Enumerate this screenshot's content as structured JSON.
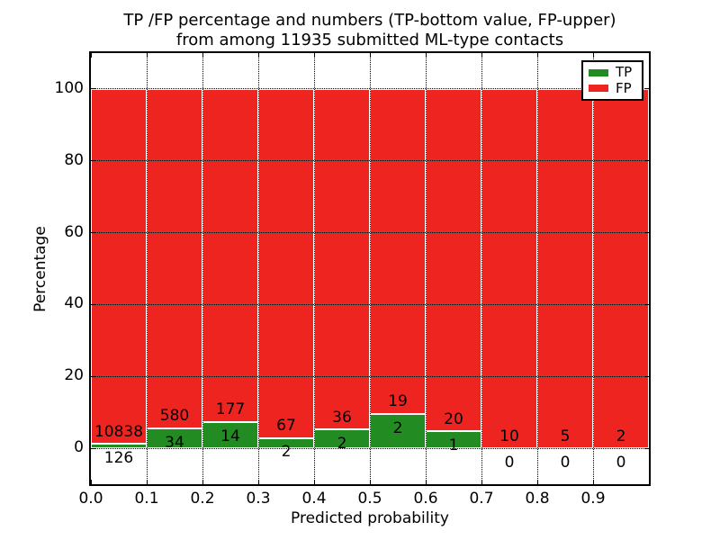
{
  "title": {
    "line1": "TP /FP percentage and numbers (TP-bottom value, FP-upper)",
    "line2": "from among 11935 submitted ML-type contacts"
  },
  "chart_data": {
    "type": "bar",
    "subtype": "stacked_percentage_histogram",
    "title": "TP /FP percentage and numbers (TP-bottom value, FP-upper) from among 11935 submitted ML-type contacts",
    "total_submitted_contacts": 11935,
    "xlabel": "Predicted probability",
    "ylabel": "Percentage",
    "xlim": [
      0.0,
      1.0
    ],
    "ylim": [
      -10,
      110
    ],
    "x_ticks": [
      0.0,
      0.1,
      0.2,
      0.3,
      0.4,
      0.5,
      0.6,
      0.7,
      0.8,
      0.9
    ],
    "x_tick_labels": [
      "0.0",
      "0.1",
      "0.2",
      "0.3",
      "0.4",
      "0.5",
      "0.6",
      "0.7",
      "0.8",
      "0.9"
    ],
    "y_ticks": [
      0,
      20,
      40,
      60,
      80,
      100
    ],
    "y_tick_labels": [
      "0",
      "20",
      "40",
      "60",
      "80",
      "100"
    ],
    "grid": "dotted",
    "legend_position": "upper right",
    "bin_edges": [
      0.0,
      0.1,
      0.2,
      0.3,
      0.4,
      0.5,
      0.6,
      0.7,
      0.8,
      0.9,
      1.0
    ],
    "series": [
      {
        "name": "TP",
        "color": "#228b22",
        "counts": [
          126,
          34,
          14,
          2,
          2,
          2,
          1,
          0,
          0,
          0
        ]
      },
      {
        "name": "FP",
        "color": "#ee2420",
        "counts": [
          10838,
          580,
          177,
          67,
          36,
          19,
          20,
          10,
          5,
          2
        ]
      }
    ],
    "bar_edge_color": "#ffffff",
    "axis_color": "#000000"
  },
  "legend": {
    "items": [
      {
        "label": "TP",
        "color": "#228b22"
      },
      {
        "label": "FP",
        "color": "#ee2420"
      }
    ]
  }
}
